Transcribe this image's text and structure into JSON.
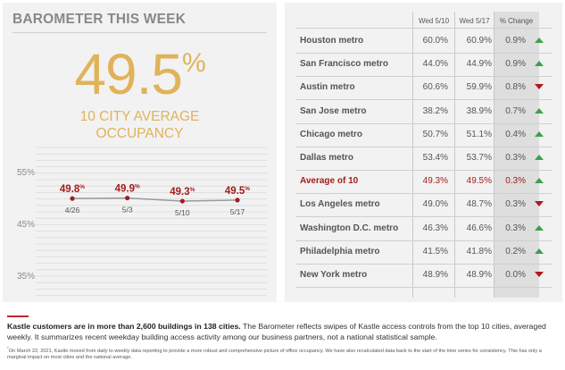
{
  "left": {
    "title": "BAROMETER THIS WEEK",
    "big_number": "49.5",
    "big_number_unit": "%",
    "subtitle_line1": "10 CITY AVERAGE",
    "subtitle_line2": "OCCUPANCY"
  },
  "chart_data": {
    "type": "line",
    "x": [
      "4/26",
      "5/3",
      "5/10",
      "5/17"
    ],
    "series": [
      {
        "values": [
          49.8,
          49.9,
          49.3,
          49.5
        ]
      }
    ],
    "data_labels": [
      "49.8",
      "49.9",
      "49.3",
      "49.5"
    ],
    "data_label_unit": "%",
    "yticks": [
      "55%",
      "45%",
      "35%"
    ],
    "ylim": [
      30,
      60
    ],
    "grid": true,
    "colors": {
      "line": "#9a9a9a",
      "marker": "#a61b1b",
      "label": "#a61b1b",
      "axis_text": "#8a8a8a"
    }
  },
  "table": {
    "headers": [
      "",
      "Wed 5/10",
      "Wed 5/17",
      "% Change"
    ],
    "rows": [
      {
        "city": "Houston metro",
        "v1": "60.0%",
        "v2": "60.9%",
        "change": "0.9%",
        "dir": "up"
      },
      {
        "city": "San Francisco metro",
        "v1": "44.0%",
        "v2": "44.9%",
        "change": "0.9%",
        "dir": "up"
      },
      {
        "city": "Austin metro",
        "v1": "60.6%",
        "v2": "59.9%",
        "change": "0.8%",
        "dir": "down"
      },
      {
        "city": "San Jose metro",
        "v1": "38.2%",
        "v2": "38.9%",
        "change": "0.7%",
        "dir": "up"
      },
      {
        "city": "Chicago metro",
        "v1": "50.7%",
        "v2": "51.1%",
        "change": "0.4%",
        "dir": "up"
      },
      {
        "city": "Dallas metro",
        "v1": "53.4%",
        "v2": "53.7%",
        "change": "0.3%",
        "dir": "up"
      },
      {
        "city": "Average of 10",
        "v1": "49.3%",
        "v2": "49.5%",
        "change": "0.3%",
        "dir": "up",
        "highlight": true
      },
      {
        "city": "Los Angeles metro",
        "v1": "49.0%",
        "v2": "48.7%",
        "change": "0.3%",
        "dir": "down"
      },
      {
        "city": "Washington D.C. metro",
        "v1": "46.3%",
        "v2": "46.6%",
        "change": "0.3%",
        "dir": "up"
      },
      {
        "city": "Philadelphia metro",
        "v1": "41.5%",
        "v2": "41.8%",
        "change": "0.2%",
        "dir": "up"
      },
      {
        "city": "New York metro",
        "v1": "48.9%",
        "v2": "48.9%",
        "change": "0.0%",
        "dir": "down"
      }
    ]
  },
  "footer": {
    "bold": "Kastle customers are in more than 2,600 buildings in 138 cities.",
    "text": " The Barometer reflects swipes of Kastle access controls from the top 10 cities, averaged weekly. It summarizes recent weekday building access activity among our business partners, not a national statistical sample.",
    "note_mark": "*",
    "note": "On March 22, 2021, Kastle moved from daily to weekly data reporting to provide a more robust and comprehensive picture of office occupancy. We have also recalculated data back to the start of the time series for consistency. This has only a marginal impact on most cities and the national average."
  },
  "colors": {
    "accent_gold": "#e0b35a",
    "accent_red": "#a61b1b",
    "up_green": "#3ca24a",
    "down_red": "#b3161b"
  }
}
